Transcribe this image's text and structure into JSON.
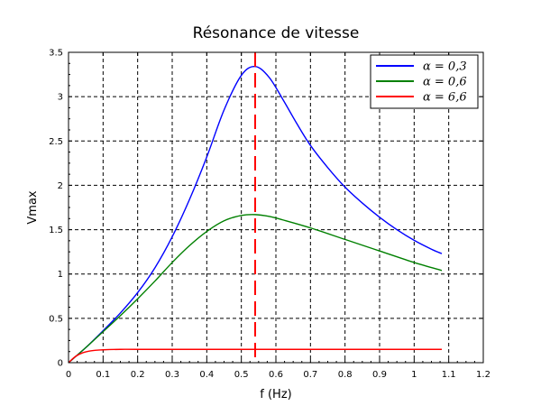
{
  "chart_data": {
    "type": "line",
    "title": "Résonance de vitesse",
    "xlabel": "f (Hz)",
    "ylabel": "Vmax",
    "xlim": [
      0,
      1.2
    ],
    "ylim": [
      0,
      3.5
    ],
    "x_ticks": [
      "0",
      "0.1",
      "0.2",
      "0.3",
      "0.4",
      "0.5",
      "0.6",
      "0.7",
      "0.8",
      "0.9",
      "1",
      "1.1",
      "1.2"
    ],
    "y_ticks": [
      "0",
      "0.5",
      "1",
      "1.5",
      "2",
      "2.5",
      "3",
      "3.5"
    ],
    "grid": true,
    "legend_position": "top-right",
    "series": [
      {
        "name": "α = 0,3",
        "color": "#0000ff",
        "x": [
          0,
          0.05,
          0.1,
          0.15,
          0.2,
          0.25,
          0.3,
          0.35,
          0.4,
          0.45,
          0.5,
          0.54,
          0.58,
          0.62,
          0.66,
          0.7,
          0.75,
          0.8,
          0.85,
          0.9,
          0.95,
          1.0,
          1.05,
          1.08
        ],
        "y": [
          0,
          0.17,
          0.36,
          0.56,
          0.79,
          1.07,
          1.42,
          1.84,
          2.32,
          2.85,
          3.24,
          3.34,
          3.22,
          2.97,
          2.7,
          2.45,
          2.2,
          1.98,
          1.8,
          1.64,
          1.5,
          1.38,
          1.28,
          1.23
        ]
      },
      {
        "name": "α = 0,6",
        "color": "#008000",
        "x": [
          0,
          0.05,
          0.1,
          0.15,
          0.2,
          0.25,
          0.3,
          0.35,
          0.4,
          0.45,
          0.5,
          0.54,
          0.58,
          0.62,
          0.7,
          0.8,
          0.9,
          1.0,
          1.08
        ],
        "y": [
          0,
          0.17,
          0.35,
          0.53,
          0.72,
          0.92,
          1.13,
          1.32,
          1.48,
          1.6,
          1.66,
          1.67,
          1.65,
          1.61,
          1.52,
          1.39,
          1.26,
          1.13,
          1.04
        ]
      },
      {
        "name": "α = 6,6",
        "color": "#ff0000",
        "x": [
          0,
          0.02,
          0.04,
          0.06,
          0.08,
          0.1,
          0.15,
          0.2,
          0.4,
          0.6,
          0.8,
          1.0,
          1.08
        ],
        "y": [
          0,
          0.07,
          0.11,
          0.13,
          0.14,
          0.145,
          0.15,
          0.15,
          0.15,
          0.15,
          0.15,
          0.15,
          0.15
        ]
      }
    ],
    "annotations": [
      {
        "type": "vline",
        "x": 0.54,
        "color": "#ff0000",
        "style": "dashed"
      }
    ]
  }
}
